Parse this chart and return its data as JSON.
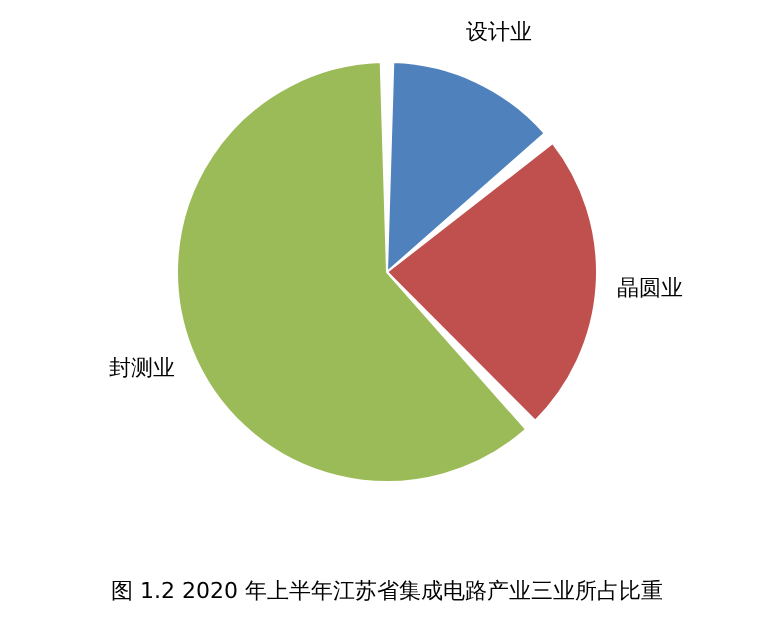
{
  "chart_data": {
    "type": "pie",
    "title": "图 1.2   2020 年上半年江苏省集成电路产业三业所占比重",
    "categories": [
      "设计业",
      "晶圆业",
      "封测业"
    ],
    "values": [
      14,
      24,
      62
    ],
    "colors": [
      "#4f81bd",
      "#c0504d",
      "#9bbb59"
    ]
  }
}
